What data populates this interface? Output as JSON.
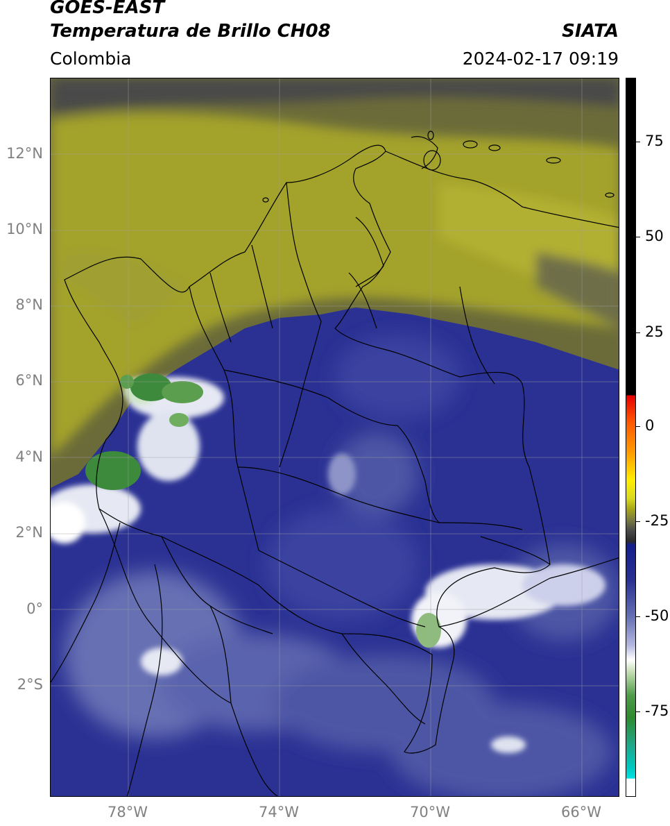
{
  "header": {
    "title_line1": "GOES-EAST",
    "title_line2": "Temperatura de Brillo CH08",
    "region": "Colombia",
    "source": "SIATA",
    "datetime": "2024-02-17 09:19"
  },
  "axes": {
    "lat_labels": [
      "12°N",
      "10°N",
      "8°N",
      "6°N",
      "4°N",
      "2°N",
      "0°",
      "2°S"
    ],
    "lon_labels": [
      "78°W",
      "74°W",
      "70°W",
      "66°W"
    ]
  },
  "colorbar": {
    "ticks": [
      "75",
      "50",
      "25",
      "0",
      "-25",
      "-50",
      "-75"
    ],
    "colors": {
      "warm_black": "#000000",
      "red": "#e60000",
      "orange": "#ff8c00",
      "yellow": "#ffee00",
      "olive": "#a6a61a",
      "dark_gray": "#4a4a4a",
      "navy": "#141e8c",
      "light_blue": "#b4b8e0",
      "white": "#ffffff",
      "green": "#2f8a2f",
      "cyan": "#00d8d8"
    }
  }
}
